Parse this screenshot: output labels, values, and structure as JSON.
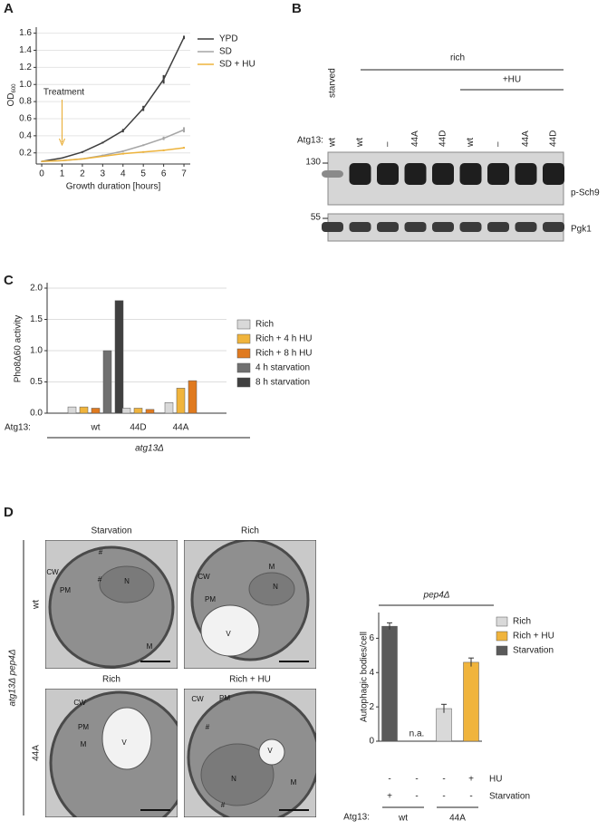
{
  "panel_labels": [
    "A",
    "B",
    "C",
    "D"
  ],
  "chart_data": [
    {
      "type": "line",
      "xlabel": "Growth duration [hours]",
      "ylabel": "OD",
      "ylabel_sub": "600",
      "x": [
        0,
        1,
        2,
        3,
        4,
        5,
        6,
        7
      ],
      "xlim": [
        -0.27,
        7.31
      ],
      "xticks": [
        0,
        1,
        2,
        3,
        4,
        5,
        6,
        7
      ],
      "ylim": [
        0.07,
        1.67
      ],
      "yticks": [
        0.2,
        0.4,
        0.6,
        0.8,
        {
          "value": 1,
          "label": "1.0"
        },
        1.2,
        1.4,
        1.6
      ],
      "grid": true,
      "series": [
        {
          "name": "YPD",
          "color": "#3f3f3f",
          "values": [
            0.1,
            0.14,
            0.21,
            0.32,
            0.46,
            0.72,
            1.06,
            1.55
          ],
          "errors": [
            0.005,
            0.005,
            0.01,
            0.01,
            0.02,
            0.03,
            0.05,
            0.02
          ]
        },
        {
          "name": "SD",
          "color": "#a6a6a6",
          "values": [
            0.1,
            0.11,
            0.13,
            0.17,
            0.22,
            0.29,
            0.37,
            0.47
          ],
          "errors": [
            0.005,
            0.005,
            0.005,
            0.01,
            0.01,
            0.01,
            0.02,
            0.03
          ]
        },
        {
          "name": "SD + HU",
          "color": "#edb33c",
          "values": [
            0.1,
            0.11,
            0.13,
            0.16,
            0.19,
            0.21,
            0.23,
            0.26
          ],
          "errors": [
            0.005,
            0.005,
            0.005,
            0.005,
            0.01,
            0.01,
            0.01,
            0.01
          ]
        }
      ],
      "annotation": {
        "text": "Treatment",
        "x": 1,
        "color": "#e8a92a"
      }
    },
    {
      "type": "grouped_bar",
      "ylabel": "Pho8Δ60 activity",
      "strain_label": "Atg13:",
      "group_title": "atg13Δ",
      "categories": [
        "wt",
        "44D",
        "44A"
      ],
      "ylim": [
        0,
        2
      ],
      "yticks": [
        {
          "value": 0,
          "label": "0.0"
        },
        0.5,
        {
          "value": 1,
          "label": "1.0"
        },
        1.5,
        {
          "value": 2,
          "label": "2.0"
        }
      ],
      "grid": true,
      "series": [
        {
          "name": "Rich",
          "color": "#d9d9d9",
          "values": [
            0.1,
            0.08,
            0.17
          ]
        },
        {
          "name": "Rich + 4 h HU",
          "color": "#f0b43c",
          "values": [
            0.1,
            0.08,
            0.4
          ]
        },
        {
          "name": "Rich + 8 h HU",
          "color": "#e07a1f",
          "values": [
            0.08,
            0.06,
            0.52
          ]
        },
        {
          "name": "4 h starvation",
          "color": "#707070",
          "values": [
            1.0,
            null,
            null
          ]
        },
        {
          "name": "8 h starvation",
          "color": "#404040",
          "values": [
            1.8,
            null,
            null
          ]
        }
      ]
    },
    {
      "type": "bar",
      "title": "pep4Δ",
      "ylabel": "Autophagic bodies/cell",
      "strain_label": "Atg13:",
      "values": [
        6.7,
        null,
        1.9,
        4.6
      ],
      "value_labels": [
        null,
        "n.a.",
        null,
        null
      ],
      "errors": [
        0.2,
        null,
        0.25,
        0.25
      ],
      "colors": [
        "#5a5a5a",
        null,
        "#d9d9d9",
        "#f0b43c"
      ],
      "ylim": [
        0,
        7.5
      ],
      "yticks": [
        0,
        2,
        4,
        6
      ],
      "legend": [
        {
          "name": "Rich",
          "color": "#d9d9d9"
        },
        {
          "name": "Rich + HU",
          "color": "#f0b43c"
        },
        {
          "name": "Starvation",
          "color": "#5a5a5a"
        }
      ],
      "conditions": [
        {
          "name": "HU",
          "marks": [
            "-",
            "-",
            "-",
            "+"
          ]
        },
        {
          "name": "Starvation",
          "marks": [
            "+",
            "-",
            "-",
            "-"
          ]
        }
      ],
      "groups": [
        "wt",
        "44A"
      ]
    }
  ],
  "blot": {
    "lane_header": "starved",
    "condition": "rich",
    "treatment": "+HU",
    "strain_label": "Atg13:",
    "lanes": [
      "wt",
      "wt",
      "–",
      "44A",
      "44D",
      "wt",
      "–",
      "44A",
      "44D"
    ],
    "markers": [
      "130",
      "55"
    ],
    "bands": [
      "p-Sch9",
      "Pgk1"
    ]
  },
  "micrographs": {
    "row_title": "atg13Δ pep4Δ",
    "rows": [
      "wt",
      "44A"
    ],
    "panels": [
      {
        "title": "Starvation",
        "labels": [
          "CW",
          "PM",
          "N",
          "M",
          "#",
          "#"
        ]
      },
      {
        "title": "Rich",
        "labels": [
          "CW",
          "PM",
          "N",
          "M",
          "V"
        ]
      },
      {
        "title": "Rich",
        "labels": [
          "CW",
          "PM",
          "M",
          "V"
        ]
      },
      {
        "title": "Rich + HU",
        "labels": [
          "CW",
          "PM",
          "N",
          "M",
          "#",
          "#",
          "V"
        ]
      }
    ]
  }
}
